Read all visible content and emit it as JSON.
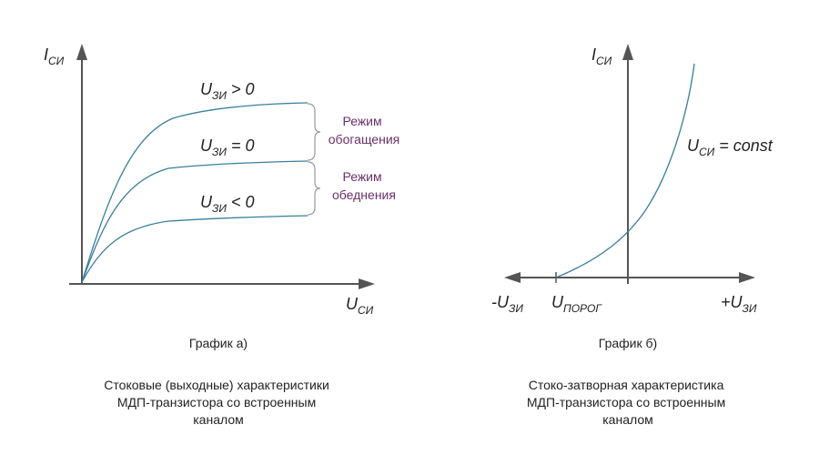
{
  "colors": {
    "axis": "#555555",
    "curve": "#3a7f9c",
    "region_text": "#6b2f6b",
    "bracket": "#9a9a9a",
    "text": "#222222"
  },
  "graph_a": {
    "y_axis": {
      "main": "I",
      "sub": "СИ"
    },
    "x_axis": {
      "main": "U",
      "sub": "СИ"
    },
    "curves": [
      {
        "main": "U",
        "sub": "ЗИ",
        "rel": " > 0"
      },
      {
        "main": "U",
        "sub": "ЗИ",
        "rel": " = 0"
      },
      {
        "main": "U",
        "sub": "ЗИ",
        "rel": " < 0"
      }
    ],
    "regions": [
      {
        "line1": "Режим",
        "line2": "обогащения"
      },
      {
        "line1": "Режим",
        "line2": "обеднения"
      }
    ],
    "label": "График  а)",
    "caption": [
      "Стоковые (выходные) характеристики",
      "МДП-транзистора со встроенным",
      "каналом"
    ]
  },
  "graph_b": {
    "y_axis": {
      "main": "I",
      "sub": "СИ"
    },
    "x_neg": {
      "main": "-U",
      "sub": "ЗИ"
    },
    "x_pos": {
      "main": "+U",
      "sub": "ЗИ"
    },
    "threshold": {
      "main": "U",
      "sub": "ПОРОГ"
    },
    "curve_label": {
      "main": "U",
      "sub": "СИ",
      "rest": " = const"
    },
    "label": "График  б)",
    "caption": [
      "Стоко-затворная характеристика",
      "МДП-транзистора со встроенным",
      "каналом"
    ]
  }
}
